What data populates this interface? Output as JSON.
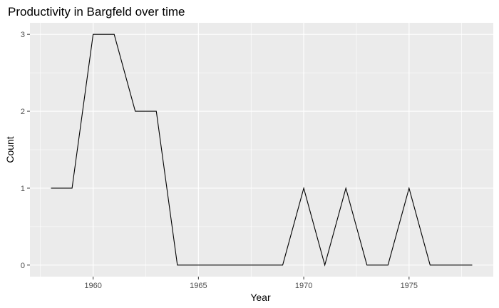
{
  "chart_data": {
    "type": "line",
    "title": "Productivity in Bargfeld over time",
    "xlabel": "Year",
    "ylabel": "Count",
    "x": [
      1958,
      1959,
      1960,
      1961,
      1962,
      1963,
      1964,
      1965,
      1966,
      1967,
      1968,
      1969,
      1970,
      1971,
      1972,
      1973,
      1974,
      1975,
      1976,
      1977,
      1978
    ],
    "series": [
      {
        "values": [
          1,
          1,
          3,
          3,
          2,
          2,
          0,
          0,
          0,
          0,
          0,
          0,
          1,
          0,
          1,
          0,
          0,
          1,
          0,
          0,
          0
        ]
      }
    ],
    "xlim": [
      1957,
      1979
    ],
    "ylim": [
      -0.15,
      3.15
    ],
    "x_ticks": [
      1960,
      1965,
      1970,
      1975
    ],
    "y_ticks": [
      0,
      1,
      2,
      3
    ],
    "grid": true,
    "legend": "none",
    "colors": {
      "panel_background": "#ebebeb",
      "grid_major": "#ffffff",
      "line": "#000000",
      "tick_text": "#4d4d4d",
      "tick_mark": "#333333"
    }
  }
}
